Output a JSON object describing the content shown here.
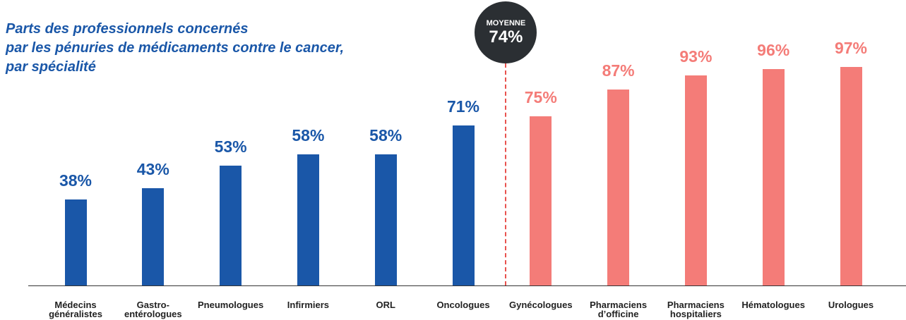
{
  "chart_data": {
    "type": "bar",
    "title": [
      "Parts des professionnels concernés",
      "par les pénuries de médicaments contre le cancer,",
      "par spécialité"
    ],
    "categories": [
      "Médecins généralistes",
      "Gastro-entérologues",
      "Pneumologues",
      "Infirmiers",
      "ORL",
      "Oncologues",
      "Gynécologues",
      "Pharmaciens d’officine",
      "Pharmaciens hospitaliers",
      "Hématologues",
      "Urologues"
    ],
    "values": [
      38,
      43,
      53,
      58,
      58,
      71,
      75,
      87,
      93,
      96,
      97
    ],
    "value_labels": [
      "38%",
      "43%",
      "53%",
      "58%",
      "58%",
      "71%",
      "75%",
      "87%",
      "93%",
      "96%",
      "97%"
    ],
    "colors": [
      "#1a57a8",
      "#1a57a8",
      "#1a57a8",
      "#1a57a8",
      "#1a57a8",
      "#1a57a8",
      "#f47c78",
      "#f47c78",
      "#f47c78",
      "#f47c78",
      "#f47c78"
    ],
    "ylim": [
      0,
      100
    ],
    "average": {
      "label": "MOYENNE",
      "value": 74,
      "value_label": "74%",
      "color": "#e8524e"
    }
  }
}
